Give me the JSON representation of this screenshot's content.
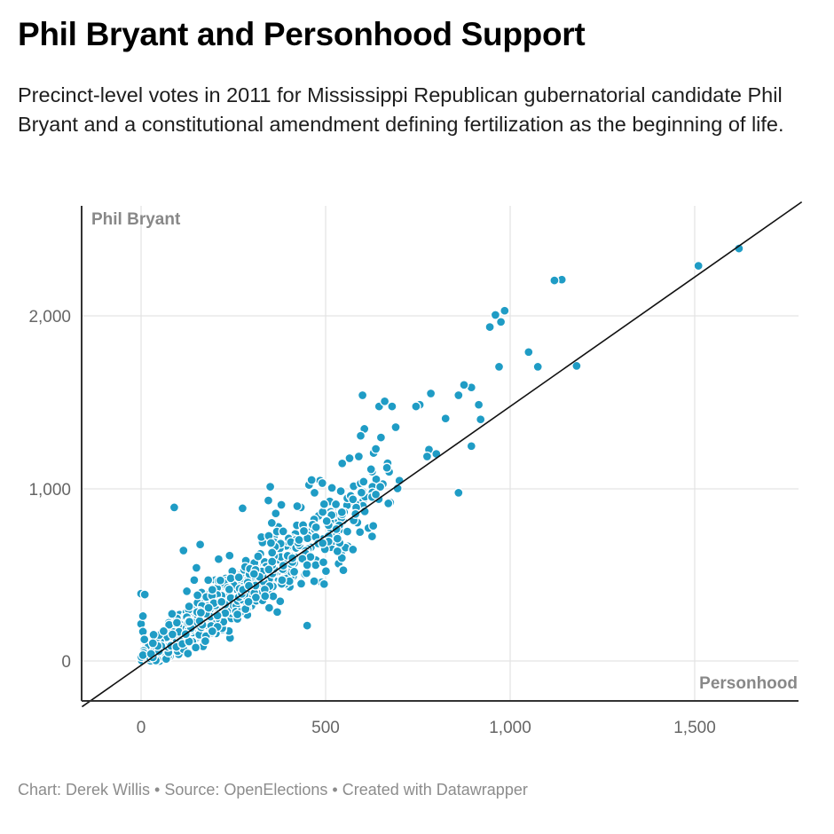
{
  "header": {
    "title": "Phil Bryant and Personhood Support",
    "subtitle": "Precinct-level votes in 2011 for Mississippi Republican gubernatorial candidate Phil Bryant and a constitutional amendment defining fertilization as the beginning of life."
  },
  "footer": {
    "text": "Chart: Derek Willis • Source: OpenElections • Created with Datawrapper"
  },
  "colors": {
    "point": "#1f9cc5",
    "line": "#111111",
    "grid": "#e3e3e3"
  },
  "chart_data": {
    "type": "scatter",
    "title": "Phil Bryant and Personhood Support",
    "xlabel": "Personhood",
    "ylabel": "Phil Bryant",
    "xlim": [
      -160,
      1790
    ],
    "ylim": [
      -240,
      2620
    ],
    "x_ticks": [
      0,
      500,
      1000,
      1500
    ],
    "x_tick_labels": [
      "0",
      "500",
      "1,000",
      "1,500"
    ],
    "y_ticks": [
      0,
      1000,
      2000
    ],
    "y_tick_labels": [
      "0",
      "1,000",
      "2,000"
    ],
    "grid": true,
    "reference_line": {
      "x": [
        -160,
        1790
      ],
      "y": [
        -265,
        2660
      ]
    },
    "points": [
      [
        1620,
        2390
      ],
      [
        1510,
        2290
      ],
      [
        1140,
        2210
      ],
      [
        1120,
        2205
      ],
      [
        985,
        2030
      ],
      [
        960,
        2005
      ],
      [
        975,
        1965
      ],
      [
        945,
        1935
      ],
      [
        1050,
        1790
      ],
      [
        1075,
        1705
      ],
      [
        1180,
        1710
      ],
      [
        970,
        1705
      ],
      [
        895,
        1585
      ],
      [
        875,
        1600
      ],
      [
        860,
        1540
      ],
      [
        825,
        1405
      ],
      [
        755,
        1485
      ],
      [
        745,
        1475
      ],
      [
        785,
        1550
      ],
      [
        915,
        1485
      ],
      [
        920,
        1400
      ],
      [
        895,
        1245
      ],
      [
        780,
        1225
      ],
      [
        775,
        1185
      ],
      [
        800,
        1200
      ],
      [
        860,
        975
      ],
      [
        700,
        1045
      ],
      [
        695,
        1000
      ],
      [
        600,
        1540
      ],
      [
        645,
        1475
      ],
      [
        680,
        1475
      ],
      [
        660,
        1505
      ],
      [
        605,
        1345
      ],
      [
        595,
        1305
      ],
      [
        650,
        1295
      ],
      [
        690,
        1355
      ],
      [
        630,
        1205
      ],
      [
        565,
        1175
      ],
      [
        545,
        1145
      ],
      [
        590,
        1185
      ],
      [
        470,
        975
      ],
      [
        455,
        1020
      ],
      [
        485,
        1045
      ],
      [
        350,
        1010
      ],
      [
        90,
        890
      ],
      [
        275,
        885
      ],
      [
        160,
        675
      ],
      [
        150,
        540
      ],
      [
        210,
        590
      ],
      [
        0,
        390
      ],
      [
        10,
        385
      ],
      [
        0,
        215
      ],
      [
        5,
        260
      ],
      [
        450,
        205
      ],
      [
        115,
        640
      ],
      [
        345,
        930
      ],
      [
        365,
        855
      ],
      [
        380,
        905
      ]
    ]
  }
}
